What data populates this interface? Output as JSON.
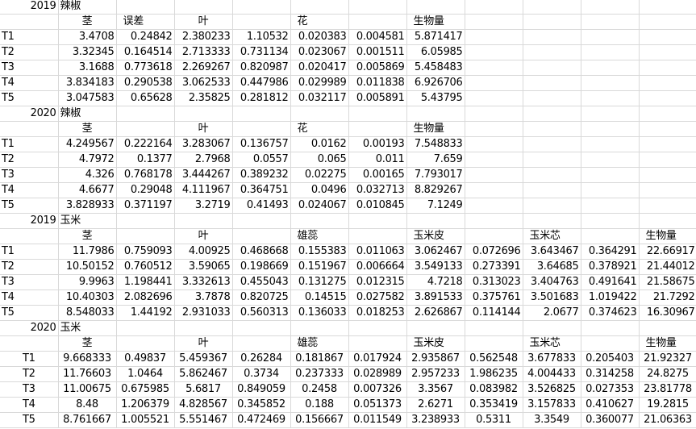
{
  "sections": [
    {
      "year": "2019",
      "crop": "辣椒",
      "align": "right",
      "headers": [
        "",
        "茎",
        "误差",
        "叶",
        "",
        "花",
        "",
        "生物量",
        "",
        "",
        "",
        ""
      ],
      "rows": [
        [
          "T1",
          "3.4708",
          "0.24842",
          "2.380233",
          "1.10532",
          "0.020383",
          "0.004581",
          "5.871417"
        ],
        [
          "T2",
          "3.32345",
          "0.164514",
          "2.713333",
          "0.731134",
          "0.023067",
          "0.001511",
          "6.05985"
        ],
        [
          "T3",
          "3.1688",
          "0.773618",
          "2.269267",
          "0.820987",
          "0.020417",
          "0.005869",
          "5.458483"
        ],
        [
          "T4",
          "3.834183",
          "0.290538",
          "3.062533",
          "0.447986",
          "0.029989",
          "0.011838",
          "6.926706"
        ],
        [
          "T5",
          "3.047583",
          "0.65628",
          "2.35825",
          "0.281812",
          "0.032117",
          "0.005891",
          "5.43795"
        ]
      ]
    },
    {
      "year": "2020",
      "crop": "辣椒",
      "align": "right",
      "headers": [
        "",
        "茎",
        "",
        "叶",
        "",
        "花",
        "",
        "生物量",
        "",
        "",
        "",
        ""
      ],
      "rows": [
        [
          "T1",
          "4.249567",
          "0.222164",
          "3.283067",
          "0.136757",
          "0.0162",
          "0.00193",
          "7.548833"
        ],
        [
          "T2",
          "4.7972",
          "0.1377",
          "2.7968",
          "0.0557",
          "0.065",
          "0.011",
          "7.659"
        ],
        [
          "T3",
          "4.326",
          "0.768178",
          "3.444267",
          "0.389232",
          "0.02275",
          "0.00165",
          "7.793017"
        ],
        [
          "T4",
          "4.6677",
          "0.29048",
          "4.111967",
          "0.364751",
          "0.0496",
          "0.032713",
          "8.829267"
        ],
        [
          "T5",
          "3.828933",
          "0.371197",
          "3.2719",
          "0.41493",
          "0.024067",
          "0.010845",
          "7.1249"
        ]
      ]
    },
    {
      "year": "2019",
      "crop": "玉米",
      "align": "right",
      "headers": [
        "",
        "茎",
        "",
        "叶",
        "",
        "雄蕊",
        "",
        "玉米皮",
        "",
        "玉米芯",
        "",
        "生物量"
      ],
      "rows": [
        [
          "T1",
          "11.7986",
          "0.759093",
          "4.00925",
          "0.468668",
          "0.155383",
          "0.011063",
          "3.062467",
          "0.072696",
          "3.643467",
          "0.364291",
          "22.66917"
        ],
        [
          "T2",
          "10.50152",
          "0.760512",
          "3.59065",
          "0.198669",
          "0.151967",
          "0.006664",
          "3.549133",
          "0.273391",
          "3.64685",
          "0.378921",
          "21.44012"
        ],
        [
          "T3",
          "9.9963",
          "1.198441",
          "3.332613",
          "0.455043",
          "0.131275",
          "0.012315",
          "4.7218",
          "0.313023",
          "3.404763",
          "0.491641",
          "21.58675"
        ],
        [
          "T4",
          "10.40303",
          "2.082696",
          "3.7878",
          "0.820725",
          "0.14515",
          "0.027582",
          "3.891533",
          "0.375761",
          "3.501683",
          "1.019422",
          "21.7292"
        ],
        [
          "T5",
          "8.548033",
          "1.44192",
          "2.931033",
          "0.560313",
          "0.136033",
          "0.018253",
          "2.626867",
          "0.114144",
          "2.0677",
          "0.374623",
          "16.30967"
        ]
      ]
    },
    {
      "year": "2020",
      "crop": "玉米",
      "align": "center",
      "headers": [
        "",
        "茎",
        "",
        "叶",
        "",
        "雄蕊",
        "",
        "玉米皮",
        "",
        "玉米芯",
        "",
        "生物量"
      ],
      "rows": [
        [
          "T1",
          "9.668333",
          "0.49837",
          "5.459367",
          "0.26284",
          "0.181867",
          "0.017924",
          "2.935867",
          "0.562548",
          "3.677833",
          "0.205403",
          "21.92327"
        ],
        [
          "T2",
          "11.76603",
          "1.0464",
          "5.862467",
          "0.3734",
          "0.237333",
          "0.028989",
          "2.957233",
          "1.986235",
          "4.004433",
          "0.314258",
          "24.8275"
        ],
        [
          "T3",
          "11.00675",
          "0.675985",
          "5.6817",
          "0.849059",
          "0.2458",
          "0.007326",
          "3.3567",
          "0.083982",
          "3.526825",
          "0.027353",
          "23.81778"
        ],
        [
          "T4",
          "8.48",
          "1.206379",
          "4.828567",
          "0.345852",
          "0.188",
          "0.051373",
          "2.6271",
          "0.353419",
          "3.157833",
          "0.410627",
          "19.2815"
        ],
        [
          "T5",
          "8.761667",
          "1.005521",
          "5.551467",
          "0.472469",
          "0.156667",
          "0.011549",
          "3.238933",
          "0.5311",
          "3.3549",
          "0.360077",
          "21.06363"
        ]
      ]
    }
  ]
}
